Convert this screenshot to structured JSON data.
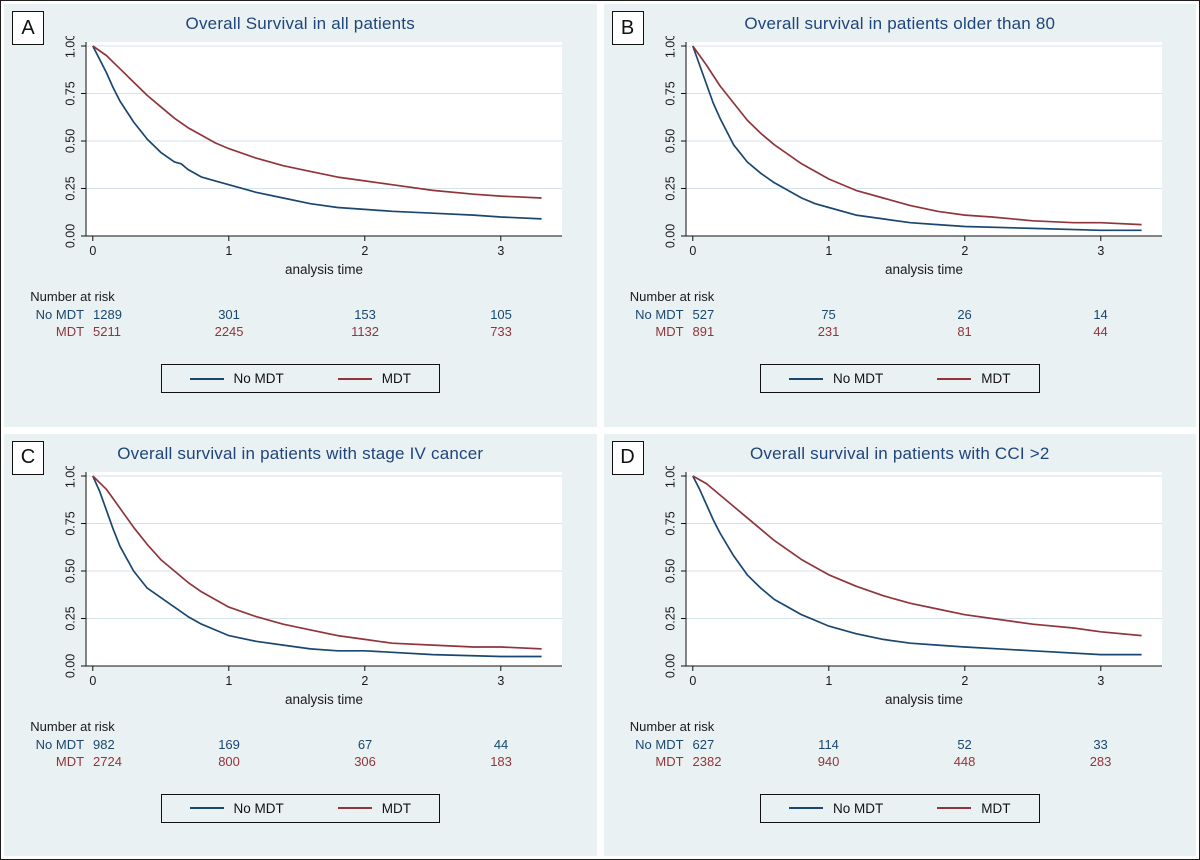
{
  "colors": {
    "navy": "#1a476f",
    "maroon": "#90353b",
    "title": "#20457c",
    "grid": "#d4e2ea",
    "panel_bg": "#e9f1f2",
    "axis": "#111111"
  },
  "legend": {
    "position": "bottom",
    "labels": [
      "No MDT",
      "MDT"
    ]
  },
  "chart_data": [
    {
      "type": "line",
      "panel": "A",
      "title": "Overall Survival in all patients",
      "xlabel": "analysis time",
      "ylabel": "",
      "xticks": [
        0,
        1,
        2,
        3
      ],
      "yticks": [
        "0.00",
        "0.25",
        "0.50",
        "0.75",
        "1.00"
      ],
      "xlim": [
        -0.05,
        3.45
      ],
      "ylim": [
        0,
        1
      ],
      "grid": "horizontal",
      "legend_position": "bottom",
      "risk": {
        "header": "Number at risk",
        "times": [
          0,
          1,
          2,
          3
        ],
        "rows": [
          {
            "label": "No MDT",
            "values": [
              "1289",
              "301",
              "153",
              "105"
            ]
          },
          {
            "label": "MDT",
            "values": [
              "5211",
              "2245",
              "1132",
              "733"
            ]
          }
        ]
      },
      "series": [
        {
          "name": "No MDT",
          "color": "#1a476f",
          "points": [
            [
              0,
              1.0
            ],
            [
              0.05,
              0.93
            ],
            [
              0.1,
              0.86
            ],
            [
              0.15,
              0.78
            ],
            [
              0.2,
              0.71
            ],
            [
              0.3,
              0.6
            ],
            [
              0.4,
              0.51
            ],
            [
              0.5,
              0.44
            ],
            [
              0.6,
              0.39
            ],
            [
              0.65,
              0.38
            ],
            [
              0.7,
              0.35
            ],
            [
              0.8,
              0.31
            ],
            [
              0.9,
              0.29
            ],
            [
              1.0,
              0.27
            ],
            [
              1.2,
              0.23
            ],
            [
              1.4,
              0.2
            ],
            [
              1.6,
              0.17
            ],
            [
              1.8,
              0.15
            ],
            [
              2.0,
              0.14
            ],
            [
              2.2,
              0.13
            ],
            [
              2.5,
              0.12
            ],
            [
              2.8,
              0.11
            ],
            [
              3.0,
              0.1
            ],
            [
              3.3,
              0.09
            ]
          ]
        },
        {
          "name": "MDT",
          "color": "#90353b",
          "points": [
            [
              0,
              1.0
            ],
            [
              0.1,
              0.95
            ],
            [
              0.2,
              0.88
            ],
            [
              0.3,
              0.81
            ],
            [
              0.4,
              0.74
            ],
            [
              0.5,
              0.68
            ],
            [
              0.6,
              0.62
            ],
            [
              0.7,
              0.57
            ],
            [
              0.8,
              0.53
            ],
            [
              0.9,
              0.49
            ],
            [
              1.0,
              0.46
            ],
            [
              1.2,
              0.41
            ],
            [
              1.4,
              0.37
            ],
            [
              1.6,
              0.34
            ],
            [
              1.8,
              0.31
            ],
            [
              2.0,
              0.29
            ],
            [
              2.2,
              0.27
            ],
            [
              2.5,
              0.24
            ],
            [
              2.8,
              0.22
            ],
            [
              3.0,
              0.21
            ],
            [
              3.3,
              0.2
            ]
          ]
        }
      ]
    },
    {
      "type": "line",
      "panel": "B",
      "title": "Overall survival in patients older than 80",
      "xlabel": "analysis time",
      "ylabel": "",
      "xticks": [
        0,
        1,
        2,
        3
      ],
      "yticks": [
        "0.00",
        "0.25",
        "0.50",
        "0.75",
        "1.00"
      ],
      "xlim": [
        -0.05,
        3.45
      ],
      "ylim": [
        0,
        1
      ],
      "grid": "horizontal",
      "legend_position": "bottom",
      "risk": {
        "header": "Number at risk",
        "times": [
          0,
          1,
          2,
          3
        ],
        "rows": [
          {
            "label": "No MDT",
            "values": [
              "527",
              "75",
              "26",
              "14"
            ]
          },
          {
            "label": "MDT",
            "values": [
              "891",
              "231",
              "81",
              "44"
            ]
          }
        ]
      },
      "series": [
        {
          "name": "No MDT",
          "color": "#1a476f",
          "points": [
            [
              0,
              1.0
            ],
            [
              0.05,
              0.9
            ],
            [
              0.1,
              0.8
            ],
            [
              0.15,
              0.7
            ],
            [
              0.2,
              0.62
            ],
            [
              0.3,
              0.48
            ],
            [
              0.4,
              0.39
            ],
            [
              0.5,
              0.33
            ],
            [
              0.6,
              0.28
            ],
            [
              0.7,
              0.24
            ],
            [
              0.8,
              0.2
            ],
            [
              0.9,
              0.17
            ],
            [
              1.0,
              0.15
            ],
            [
              1.2,
              0.11
            ],
            [
              1.4,
              0.09
            ],
            [
              1.6,
              0.07
            ],
            [
              1.8,
              0.06
            ],
            [
              2.0,
              0.05
            ],
            [
              2.5,
              0.04
            ],
            [
              3.0,
              0.03
            ],
            [
              3.3,
              0.03
            ]
          ]
        },
        {
          "name": "MDT",
          "color": "#90353b",
          "points": [
            [
              0,
              1.0
            ],
            [
              0.1,
              0.9
            ],
            [
              0.2,
              0.79
            ],
            [
              0.3,
              0.7
            ],
            [
              0.4,
              0.61
            ],
            [
              0.5,
              0.54
            ],
            [
              0.6,
              0.48
            ],
            [
              0.7,
              0.43
            ],
            [
              0.8,
              0.38
            ],
            [
              0.9,
              0.34
            ],
            [
              1.0,
              0.3
            ],
            [
              1.2,
              0.24
            ],
            [
              1.4,
              0.2
            ],
            [
              1.6,
              0.16
            ],
            [
              1.8,
              0.13
            ],
            [
              2.0,
              0.11
            ],
            [
              2.2,
              0.1
            ],
            [
              2.5,
              0.08
            ],
            [
              2.8,
              0.07
            ],
            [
              3.0,
              0.07
            ],
            [
              3.3,
              0.06
            ]
          ]
        }
      ]
    },
    {
      "type": "line",
      "panel": "C",
      "title": "Overall survival in patients with stage IV cancer",
      "xlabel": "analysis time",
      "ylabel": "",
      "xticks": [
        0,
        1,
        2,
        3
      ],
      "yticks": [
        "0.00",
        "0.25",
        "0.50",
        "0.75",
        "1.00"
      ],
      "xlim": [
        -0.05,
        3.45
      ],
      "ylim": [
        0,
        1
      ],
      "grid": "horizontal",
      "legend_position": "bottom",
      "risk": {
        "header": "Number at risk",
        "times": [
          0,
          1,
          2,
          3
        ],
        "rows": [
          {
            "label": "No MDT",
            "values": [
              "982",
              "169",
              "67",
              "44"
            ]
          },
          {
            "label": "MDT",
            "values": [
              "2724",
              "800",
              "306",
              "183"
            ]
          }
        ]
      },
      "series": [
        {
          "name": "No MDT",
          "color": "#1a476f",
          "points": [
            [
              0,
              1.0
            ],
            [
              0.05,
              0.92
            ],
            [
              0.1,
              0.82
            ],
            [
              0.15,
              0.72
            ],
            [
              0.2,
              0.63
            ],
            [
              0.3,
              0.5
            ],
            [
              0.4,
              0.41
            ],
            [
              0.5,
              0.36
            ],
            [
              0.6,
              0.31
            ],
            [
              0.7,
              0.26
            ],
            [
              0.8,
              0.22
            ],
            [
              0.9,
              0.19
            ],
            [
              1.0,
              0.16
            ],
            [
              1.2,
              0.13
            ],
            [
              1.4,
              0.11
            ],
            [
              1.6,
              0.09
            ],
            [
              1.8,
              0.08
            ],
            [
              2.0,
              0.08
            ],
            [
              2.5,
              0.06
            ],
            [
              3.0,
              0.05
            ],
            [
              3.3,
              0.05
            ]
          ]
        },
        {
          "name": "MDT",
          "color": "#90353b",
          "points": [
            [
              0,
              1.0
            ],
            [
              0.1,
              0.93
            ],
            [
              0.2,
              0.83
            ],
            [
              0.3,
              0.73
            ],
            [
              0.4,
              0.64
            ],
            [
              0.5,
              0.56
            ],
            [
              0.6,
              0.5
            ],
            [
              0.7,
              0.44
            ],
            [
              0.8,
              0.39
            ],
            [
              0.9,
              0.35
            ],
            [
              1.0,
              0.31
            ],
            [
              1.2,
              0.26
            ],
            [
              1.4,
              0.22
            ],
            [
              1.6,
              0.19
            ],
            [
              1.8,
              0.16
            ],
            [
              2.0,
              0.14
            ],
            [
              2.2,
              0.12
            ],
            [
              2.5,
              0.11
            ],
            [
              2.8,
              0.1
            ],
            [
              3.0,
              0.1
            ],
            [
              3.3,
              0.09
            ]
          ]
        }
      ]
    },
    {
      "type": "line",
      "panel": "D",
      "title": "Overall survival in patients with CCI >2",
      "xlabel": "analysis time",
      "ylabel": "",
      "xticks": [
        0,
        1,
        2,
        3
      ],
      "yticks": [
        "0.00",
        "0.25",
        "0.50",
        "0.75",
        "1.00"
      ],
      "xlim": [
        -0.05,
        3.45
      ],
      "ylim": [
        0,
        1
      ],
      "grid": "horizontal",
      "legend_position": "bottom",
      "risk": {
        "header": "Number at risk",
        "times": [
          0,
          1,
          2,
          3
        ],
        "rows": [
          {
            "label": "No MDT",
            "values": [
              "627",
              "114",
              "52",
              "33"
            ]
          },
          {
            "label": "MDT",
            "values": [
              "2382",
              "940",
              "448",
              "283"
            ]
          }
        ]
      },
      "series": [
        {
          "name": "No MDT",
          "color": "#1a476f",
          "points": [
            [
              0,
              1.0
            ],
            [
              0.05,
              0.93
            ],
            [
              0.1,
              0.85
            ],
            [
              0.15,
              0.77
            ],
            [
              0.2,
              0.7
            ],
            [
              0.3,
              0.58
            ],
            [
              0.4,
              0.48
            ],
            [
              0.5,
              0.41
            ],
            [
              0.6,
              0.35
            ],
            [
              0.7,
              0.31
            ],
            [
              0.8,
              0.27
            ],
            [
              0.9,
              0.24
            ],
            [
              1.0,
              0.21
            ],
            [
              1.2,
              0.17
            ],
            [
              1.4,
              0.14
            ],
            [
              1.6,
              0.12
            ],
            [
              1.8,
              0.11
            ],
            [
              2.0,
              0.1
            ],
            [
              2.5,
              0.08
            ],
            [
              3.0,
              0.06
            ],
            [
              3.3,
              0.06
            ]
          ]
        },
        {
          "name": "MDT",
          "color": "#90353b",
          "points": [
            [
              0,
              1.0
            ],
            [
              0.1,
              0.96
            ],
            [
              0.2,
              0.9
            ],
            [
              0.3,
              0.84
            ],
            [
              0.4,
              0.78
            ],
            [
              0.5,
              0.72
            ],
            [
              0.6,
              0.66
            ],
            [
              0.7,
              0.61
            ],
            [
              0.8,
              0.56
            ],
            [
              0.9,
              0.52
            ],
            [
              1.0,
              0.48
            ],
            [
              1.2,
              0.42
            ],
            [
              1.4,
              0.37
            ],
            [
              1.6,
              0.33
            ],
            [
              1.8,
              0.3
            ],
            [
              2.0,
              0.27
            ],
            [
              2.2,
              0.25
            ],
            [
              2.5,
              0.22
            ],
            [
              2.8,
              0.2
            ],
            [
              3.0,
              0.18
            ],
            [
              3.3,
              0.16
            ]
          ]
        }
      ]
    }
  ]
}
